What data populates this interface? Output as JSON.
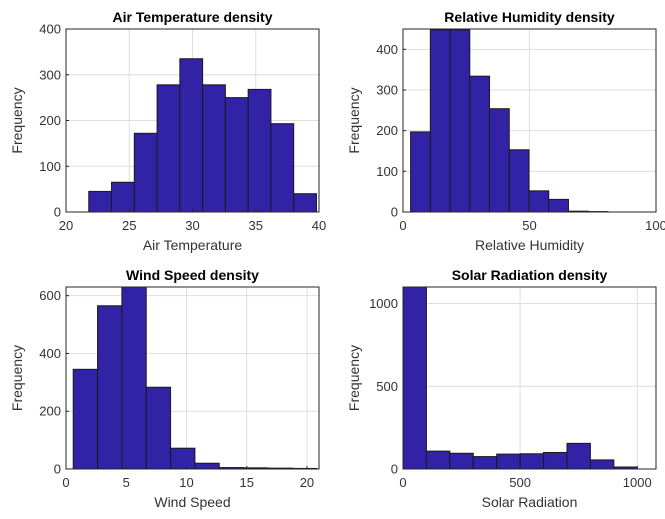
{
  "colors": {
    "bar": "#3222a6",
    "bar_edge": "#1a1a1a",
    "grid": "#dedede"
  },
  "chart_data": [
    {
      "type": "bar",
      "title": "Air Temperature density",
      "xlabel": "Air Temperature",
      "ylabel": "Frequency",
      "xlim": [
        20,
        40
      ],
      "ylim": [
        0,
        400
      ],
      "xticks": [
        20,
        25,
        30,
        35,
        40
      ],
      "yticks": [
        0,
        100,
        200,
        300,
        400
      ],
      "grid": true,
      "bin_edges": [
        21.8,
        23.6,
        25.4,
        27.2,
        29.0,
        30.8,
        32.6,
        34.4,
        36.2,
        38.0,
        39.8
      ],
      "values": [
        45,
        65,
        172,
        278,
        335,
        278,
        250,
        268,
        193,
        40
      ]
    },
    {
      "type": "bar",
      "title": "Relative Humidity density",
      "xlabel": "Relative Humidity",
      "ylabel": "Frequency",
      "xlim": [
        0,
        100
      ],
      "ylim": [
        0,
        450
      ],
      "xticks": [
        0,
        50,
        100
      ],
      "yticks": [
        0,
        100,
        200,
        300,
        400
      ],
      "grid": true,
      "bin_edges": [
        3,
        10.8,
        18.6,
        26.4,
        34.2,
        42.0,
        49.8,
        57.6,
        65.4,
        73.2,
        81.0
      ],
      "values": [
        197,
        448,
        448,
        334,
        254,
        153,
        52,
        31,
        2,
        1
      ]
    },
    {
      "type": "bar",
      "title": "Wind Speed density",
      "xlabel": "Wind Speed",
      "ylabel": "Frequency",
      "xlim": [
        0,
        21
      ],
      "ylim": [
        0,
        630
      ],
      "xticks": [
        0,
        5,
        10,
        15,
        20
      ],
      "yticks": [
        0,
        200,
        400,
        600
      ],
      "grid": true,
      "bin_edges": [
        0.6,
        2.62,
        4.64,
        6.66,
        8.68,
        10.7,
        12.72,
        14.74,
        16.76,
        18.78,
        20.8
      ],
      "values": [
        345,
        565,
        630,
        283,
        72,
        20,
        5,
        4,
        3,
        2
      ]
    },
    {
      "type": "bar",
      "title": "Solar Radiation density",
      "xlabel": "Solar Radiation",
      "ylabel": "Frequency",
      "xlim": [
        0,
        1080
      ],
      "ylim": [
        0,
        1100
      ],
      "xticks": [
        0,
        500,
        1000
      ],
      "yticks": [
        0,
        500,
        1000
      ],
      "grid": true,
      "bin_edges": [
        0,
        100,
        200,
        300,
        400,
        500,
        600,
        700,
        800,
        900,
        1000
      ],
      "values": [
        1100,
        108,
        95,
        75,
        90,
        92,
        100,
        155,
        55,
        12
      ]
    }
  ]
}
